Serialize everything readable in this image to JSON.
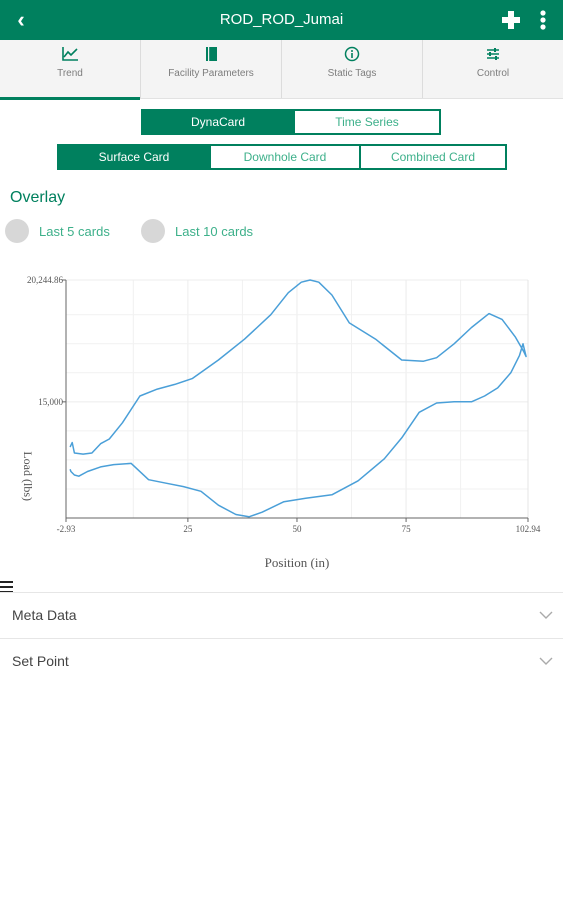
{
  "header": {
    "title": "ROD_ROD_Jumai",
    "back_glyph": "‹",
    "icons": [
      "back-icon",
      "plus-icon",
      "more-vertical-icon"
    ]
  },
  "tabs": [
    {
      "label": "Trend",
      "icon": "chart-line-icon",
      "active": true
    },
    {
      "label": "Facility Parameters",
      "icon": "book-icon",
      "active": false
    },
    {
      "label": "Static Tags",
      "icon": "info-icon",
      "active": false
    },
    {
      "label": "Control",
      "icon": "sliders-icon",
      "active": false
    }
  ],
  "view_toggle": {
    "options": [
      "DynaCard",
      "Time Series"
    ],
    "selected": "DynaCard"
  },
  "card_toggle": {
    "options": [
      "Surface Card",
      "Downhole Card",
      "Combined Card"
    ],
    "selected": "Surface Card"
  },
  "overlay": {
    "title": "Overlay",
    "options": [
      "Last 5 cards",
      "Last 10 cards"
    ]
  },
  "chart_data": {
    "type": "line",
    "xlabel": "Position (in)",
    "ylabel": "Load (lbs)",
    "x_ticks": [
      "-2.93",
      "25",
      "50",
      "75",
      "102.94"
    ],
    "y_ticks": [
      "20,244.86",
      "15,000"
    ],
    "xlim": [
      -2.93,
      102.94
    ],
    "ylim": [
      10000,
      20244.86
    ],
    "grid": true,
    "series": [
      {
        "color": "#4a9fd8",
        "x": [
          -2.0,
          -1.5,
          -1.0,
          1.0,
          3.0,
          5.0,
          7.0,
          10.0,
          14.0,
          18.0,
          22.0,
          26.0,
          32.0,
          38.0,
          44.0,
          48.0,
          51.0,
          53.0,
          55.0,
          58.0,
          62.0,
          68.0,
          74.0,
          79.0,
          82.0,
          86.0,
          90.0,
          94.0,
          97.0,
          100.0,
          102.0,
          102.5,
          101.8,
          101.0,
          99.0,
          96.0,
          93.0,
          90.0,
          86.0,
          82.0,
          78.0,
          74.0,
          70.0,
          64.0,
          58.0,
          52.0,
          47.0,
          42.0,
          39.0,
          36.0,
          32.0,
          28.0,
          24.0,
          20.0,
          16.0,
          12.0,
          8.0,
          5.0,
          2.0,
          0.0,
          -1.0,
          -1.8,
          -2.0
        ],
        "y": [
          13050,
          13250,
          12800,
          12750,
          12800,
          13200,
          13400,
          14100,
          15250,
          15550,
          15750,
          16000,
          16800,
          17700,
          18750,
          19700,
          20150,
          20244.86,
          20150,
          19600,
          18400,
          17700,
          16800,
          16750,
          16900,
          17500,
          18200,
          18800,
          18550,
          17800,
          17150,
          16950,
          17500,
          17000,
          16250,
          15600,
          15250,
          15000,
          15000,
          14950,
          14550,
          13450,
          12550,
          11600,
          11000,
          10850,
          10700,
          10250,
          10050,
          10150,
          10550,
          11150,
          11350,
          11500,
          11650,
          12350,
          12300,
          12200,
          12000,
          11800,
          11850,
          12000,
          12100
        ]
      }
    ]
  },
  "accordions": [
    {
      "label": "Meta Data",
      "icon": "chevron-down-icon"
    },
    {
      "label": "Set Point",
      "icon": "chevron-down-icon"
    }
  ],
  "menu_icon": "hamburger-icon",
  "colors": {
    "primary": "#00805e",
    "accent_text": "#3db08a",
    "line": "#4a9fd8"
  }
}
